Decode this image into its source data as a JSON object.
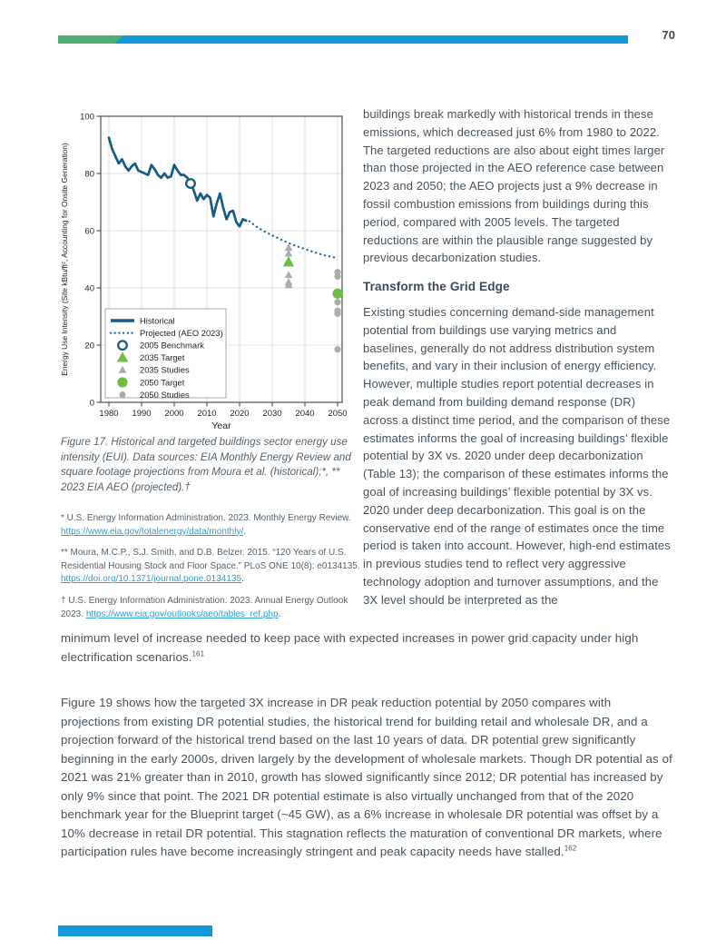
{
  "page": {
    "number": "70"
  },
  "colors": {
    "accent_blue": "#1399d8",
    "accent_green": "#4fae74",
    "historical_line": "#175a84",
    "target_green": "#6fbe44",
    "study_gray": "#a9abad",
    "link_blue": "#2e9fd6",
    "body_text": "#46535e"
  },
  "figure": {
    "caption": "Figure 17. Historical and targeted buildings sector energy use intensity (EUI). Data sources: EIA Monthly Energy Review and square footage projections from Moura et al. (historical);*, ** 2023 EIA AEO (projected).†"
  },
  "footnotes": [
    {
      "text": "* U.S. Energy Information Administration. 2023. Monthly Energy Review. ",
      "link": "https://www.eia.gov/totalenergy/data/monthly/",
      "suffix": "."
    },
    {
      "text": "** Moura, M.C.P., S.J. Smith, and D.B. Belzer. 2015. “120 Years of U.S. Residential Housing Stock and Floor Space.” PLoS ONE 10(8): e0134135. ",
      "link": "https://doi.org/10.1371/journal.pone.0134135",
      "suffix": "."
    },
    {
      "text": "† U.S. Energy Information Administration. 2023. Annual Energy Outlook 2023. ",
      "link": "https://www.eia.gov/outlooks/aeo/tables_ref.php",
      "suffix": "."
    }
  ],
  "right_column": {
    "para1": "buildings break markedly with historical trends in these emissions, which decreased just 6% from 1980 to 2022. The targeted reductions are also about eight times larger than those projected in the AEO reference case between 2023 and 2050; the AEO projects just a 9% decrease in fossil combustion emissions from buildings during this period, compared with 2005 levels. The targeted reductions are within the plausible range suggested by previous decarbonization studies.",
    "heading": "Transform the Grid Edge",
    "para2": "Existing studies concerning demand-side management potential from buildings use varying metrics and baselines, generally do not address distribution system benefits, and vary in their inclusion of energy efficiency. However, multiple studies report potential decreases in peak demand from building demand response (DR) across a distinct time period, and the comparison of these estimates informs the goal of increasing buildings’ flexible potential by 3X vs. 2020 under deep decarbonization (Table 13); the comparison of these estimates informs the goal of increasing buildings’ flexible potential by 3X vs. 2020 under deep decarbonization. This goal is on the conservative end of the range of estimates once the time period is taken into account. However, high-end estimates in previous studies tend to reflect very aggressive technology adoption and turnover assumptions, and the 3X level should be interpreted as the"
  },
  "bottom": {
    "para1_text": "minimum level of increase needed to keep pace with expected increases in power grid capacity under high electrification scenarios.",
    "para1_sup": "161",
    "para2_text": "Figure 19 shows how the targeted 3X increase in DR peak reduction potential by 2050 compares with projections from existing DR potential studies, the historical trend for building retail and wholesale DR, and a projection forward of the historical trend based on the last 10 years of data. DR potential grew significantly beginning in the early 2000s, driven largely by the development of wholesale markets. Though DR potential as of 2021 was 21% greater than in 2010, growth has slowed significantly since 2012; DR potential has increased by only 9% since that point. The 2021 DR potential estimate is also virtually unchanged from that of the 2020 benchmark year for the Blueprint target (~45 GW), as a 6% increase in wholesale DR potential was offset by a 10% decrease in retail DR potential. This stagnation reflects the maturation of conventional DR markets, where participation rules have become increasingly stringent and peak capacity needs have stalled.",
    "para2_sup": "162"
  },
  "chart_data": {
    "type": "line",
    "xlabel": "Year",
    "ylabel": "Energy Use Intensity (Site kBtu/ft², Accounting for Onsite Generation)",
    "xlim": [
      1977.5,
      2051.5
    ],
    "ylim": [
      0,
      100
    ],
    "xticks": [
      1980,
      1990,
      2000,
      2010,
      2020,
      2030,
      2040,
      2050
    ],
    "yticks": [
      0,
      20,
      40,
      60,
      80,
      100
    ],
    "grid": true,
    "legend_position": "lower-left",
    "series": [
      {
        "name": "Historical",
        "type": "line",
        "color": "#175a84",
        "points": [
          [
            1980,
            92.5
          ],
          [
            1981,
            88.5
          ],
          [
            1982,
            86
          ],
          [
            1983,
            83.5
          ],
          [
            1984,
            85
          ],
          [
            1985,
            82.5
          ],
          [
            1986,
            81
          ],
          [
            1987,
            82.5
          ],
          [
            1988,
            83.5
          ],
          [
            1989,
            81
          ],
          [
            1990,
            80.5
          ],
          [
            1991,
            80
          ],
          [
            1992,
            79.5
          ],
          [
            1993,
            83
          ],
          [
            1994,
            81.5
          ],
          [
            1995,
            79.5
          ],
          [
            1996,
            78.5
          ],
          [
            1997,
            80
          ],
          [
            1998,
            78.5
          ],
          [
            1999,
            79
          ],
          [
            2000,
            83
          ],
          [
            2001,
            81
          ],
          [
            2002,
            79.5
          ],
          [
            2003,
            79.5
          ],
          [
            2004,
            78.5
          ],
          [
            2005,
            76.5
          ],
          [
            2006,
            74
          ],
          [
            2007,
            70.5
          ],
          [
            2008,
            73
          ],
          [
            2009,
            71
          ],
          [
            2010,
            72.5
          ],
          [
            2011,
            71.5
          ],
          [
            2012,
            65
          ],
          [
            2013,
            69.5
          ],
          [
            2014,
            73
          ],
          [
            2015,
            68
          ],
          [
            2016,
            64
          ],
          [
            2017,
            66.5
          ],
          [
            2018,
            67
          ],
          [
            2019,
            63
          ],
          [
            2020,
            61.5
          ],
          [
            2021,
            64
          ],
          [
            2022,
            63.5
          ]
        ]
      },
      {
        "name": "Projected (AEO 2023)",
        "type": "dotted-line",
        "color": "#1d6a99",
        "points": [
          [
            2023,
            63.3
          ],
          [
            2025,
            61.5
          ],
          [
            2028,
            59.5
          ],
          [
            2031,
            57.8
          ],
          [
            2034,
            56.2
          ],
          [
            2037,
            54.8
          ],
          [
            2040,
            53.6
          ],
          [
            2043,
            52.4
          ],
          [
            2046,
            51.4
          ],
          [
            2050,
            50.4
          ]
        ]
      },
      {
        "name": "2005 Benchmark",
        "type": "open-circle",
        "color": "#175a84",
        "size": 4.8,
        "points": [
          [
            2005,
            76.5
          ]
        ]
      },
      {
        "name": "2035 Target",
        "type": "triangle",
        "color": "#6fbe44",
        "size": 6.6,
        "points": [
          [
            2035,
            49
          ]
        ]
      },
      {
        "name": "2035 Studies",
        "type": "triangle",
        "color": "#a9abad",
        "size": 4.6,
        "points": [
          [
            2035,
            54
          ],
          [
            2035,
            52
          ],
          [
            2035,
            44.5
          ],
          [
            2035,
            42
          ],
          [
            2035,
            41
          ]
        ]
      },
      {
        "name": "2050 Target",
        "type": "circle",
        "color": "#6fbe44",
        "size": 5.6,
        "points": [
          [
            2050,
            38
          ]
        ]
      },
      {
        "name": "2050 Studies",
        "type": "circle",
        "color": "#a9abad",
        "size": 3.6,
        "points": [
          [
            2050,
            45.5
          ],
          [
            2050,
            44
          ],
          [
            2050,
            35
          ],
          [
            2050,
            32
          ],
          [
            2050,
            31
          ],
          [
            2050,
            18.5
          ]
        ]
      }
    ]
  }
}
